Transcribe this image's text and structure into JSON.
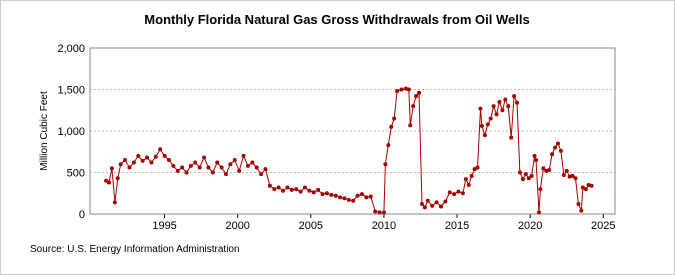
{
  "chart_data": {
    "type": "line",
    "title": "Monthly Florida Natural Gas Gross Withdrawals from Oil Wells",
    "y_label": "Million Cubic Feet",
    "source": "Source: U.S. Energy Information Administration",
    "xlim": [
      1989.9,
      2025.8
    ],
    "xticks": [
      1995,
      2000,
      2005,
      2010,
      2015,
      2020,
      2025
    ],
    "ylim": [
      0,
      2000
    ],
    "yticks": [
      0,
      500,
      {
        "value": 1000,
        "label": "1,000"
      },
      {
        "value": 1500,
        "label": "1,500"
      },
      {
        "value": 2000,
        "label": "2,000"
      }
    ],
    "grid": true,
    "color": "#a40000",
    "x": [
      1991.0,
      1991.2,
      1991.4,
      1991.6,
      1991.8,
      1992.0,
      1992.3,
      1992.6,
      1992.9,
      1993.2,
      1993.5,
      1993.8,
      1994.1,
      1994.4,
      1994.7,
      1995.0,
      1995.3,
      1995.6,
      1995.9,
      1996.2,
      1996.5,
      1996.8,
      1997.1,
      1997.4,
      1997.7,
      1998.0,
      1998.3,
      1998.6,
      1998.9,
      1999.2,
      1999.5,
      1999.8,
      2000.1,
      2000.4,
      2000.7,
      2001.0,
      2001.3,
      2001.6,
      2001.9,
      2002.2,
      2002.5,
      2002.8,
      2003.1,
      2003.4,
      2003.7,
      2004.0,
      2004.3,
      2004.6,
      2004.9,
      2005.2,
      2005.5,
      2005.8,
      2006.1,
      2006.4,
      2006.7,
      2007.0,
      2007.3,
      2007.6,
      2007.9,
      2008.2,
      2008.5,
      2008.8,
      2009.1,
      2009.4,
      2009.7,
      2010.0,
      2010.1,
      2010.3,
      2010.5,
      2010.7,
      2010.9,
      2011.2,
      2011.5,
      2011.7,
      2011.8,
      2012.0,
      2012.2,
      2012.4,
      2012.6,
      2012.8,
      2013.0,
      2013.3,
      2013.6,
      2013.9,
      2014.2,
      2014.5,
      2014.8,
      2015.1,
      2015.4,
      2015.6,
      2015.8,
      2016.0,
      2016.2,
      2016.4,
      2016.6,
      2016.7,
      2016.9,
      2017.1,
      2017.3,
      2017.5,
      2017.7,
      2017.9,
      2018.1,
      2018.3,
      2018.5,
      2018.7,
      2018.9,
      2019.1,
      2019.3,
      2019.5,
      2019.7,
      2019.9,
      2020.1,
      2020.3,
      2020.4,
      2020.6,
      2020.7,
      2020.9,
      2021.1,
      2021.3,
      2021.5,
      2021.7,
      2021.9,
      2022.1,
      2022.3,
      2022.5,
      2022.7,
      2022.9,
      2023.1,
      2023.3,
      2023.5,
      2023.6,
      2023.8,
      2024.0,
      2024.2
    ],
    "values": [
      400,
      380,
      550,
      140,
      430,
      600,
      650,
      560,
      620,
      700,
      640,
      680,
      620,
      690,
      780,
      700,
      650,
      580,
      520,
      560,
      500,
      580,
      620,
      560,
      680,
      560,
      500,
      620,
      560,
      480,
      600,
      650,
      520,
      700,
      580,
      620,
      560,
      480,
      540,
      340,
      300,
      320,
      280,
      320,
      290,
      300,
      270,
      320,
      280,
      260,
      290,
      240,
      250,
      230,
      220,
      200,
      190,
      170,
      160,
      220,
      240,
      200,
      210,
      30,
      20,
      20,
      600,
      830,
      1050,
      1150,
      1480,
      1500,
      1510,
      1500,
      1070,
      1300,
      1420,
      1460,
      120,
      80,
      160,
      100,
      140,
      90,
      150,
      260,
      240,
      270,
      250,
      420,
      350,
      460,
      540,
      560,
      1270,
      1060,
      950,
      1080,
      1150,
      1300,
      1200,
      1350,
      1250,
      1380,
      1300,
      920,
      1420,
      1340,
      500,
      420,
      480,
      430,
      460,
      700,
      650,
      20,
      300,
      550,
      520,
      530,
      720,
      800,
      850,
      760,
      470,
      520,
      450,
      460,
      430,
      120,
      40,
      320,
      300,
      350,
      340
    ]
  }
}
